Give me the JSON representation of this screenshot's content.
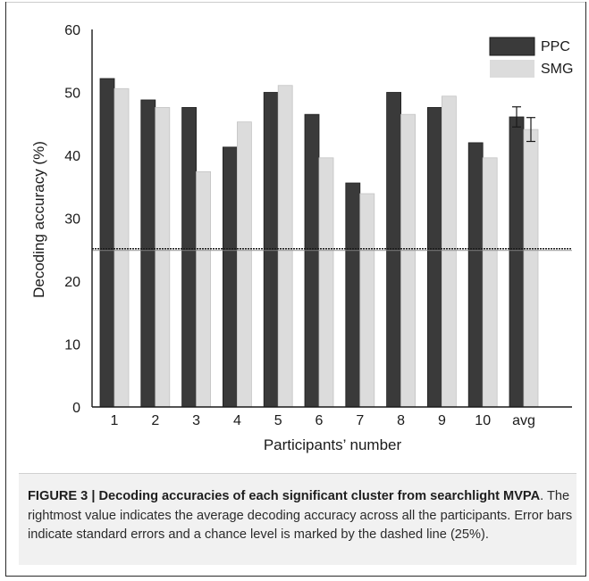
{
  "chart_data": {
    "type": "bar",
    "categories": [
      "1",
      "2",
      "3",
      "4",
      "5",
      "6",
      "7",
      "8",
      "9",
      "10",
      "avg"
    ],
    "series": [
      {
        "name": "PPC",
        "values": [
          52.2,
          48.8,
          47.6,
          41.3,
          50.0,
          46.5,
          35.6,
          50.0,
          47.6,
          42.0,
          46.1
        ],
        "errors": [
          null,
          null,
          null,
          null,
          null,
          null,
          null,
          null,
          null,
          null,
          1.6
        ],
        "color": "#3a3a3a"
      },
      {
        "name": "SMG",
        "values": [
          50.6,
          47.6,
          37.4,
          45.3,
          51.1,
          39.6,
          33.9,
          46.5,
          49.4,
          39.6,
          44.1
        ],
        "errors": [
          null,
          null,
          null,
          null,
          null,
          null,
          null,
          null,
          null,
          null,
          1.9
        ],
        "color": "#dcdcdc"
      }
    ],
    "xlabel": "Participants’ number",
    "ylabel": "Decoding accuracy (%)",
    "ylim": [
      0,
      60
    ],
    "yticks": [
      "0",
      "10",
      "20",
      "30",
      "40",
      "50",
      "60"
    ],
    "chance_level": 25,
    "legend_position": "top-right",
    "grid": false
  },
  "caption": {
    "label": "FIGURE 3 | Decoding accuracies of each significant cluster from searchlight MVPA",
    "text": ". The rightmost value indicates the average decoding accuracy across all the participants. Error bars indicate standard errors and a chance level is marked by the dashed line (25%)."
  }
}
